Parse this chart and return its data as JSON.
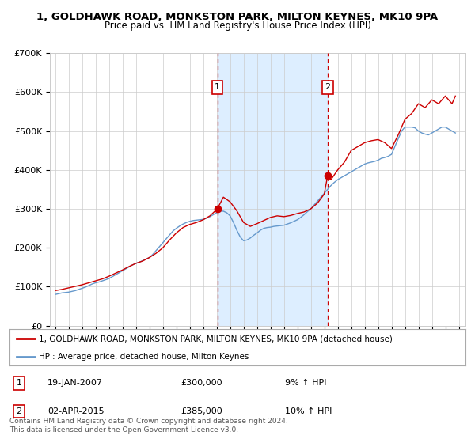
{
  "title": "1, GOLDHAWK ROAD, MONKSTON PARK, MILTON KEYNES, MK10 9PA",
  "subtitle": "Price paid vs. HM Land Registry's House Price Index (HPI)",
  "background_color": "#ffffff",
  "plot_bg_color": "#ffffff",
  "grid_color": "#cccccc",
  "legend_label_red": "1, GOLDHAWK ROAD, MONKSTON PARK, MILTON KEYNES, MK10 9PA (detached house)",
  "legend_label_blue": "HPI: Average price, detached house, Milton Keynes",
  "annotation1_label": "1",
  "annotation1_date": "19-JAN-2007",
  "annotation1_price": "£300,000",
  "annotation1_hpi": "9% ↑ HPI",
  "annotation2_label": "2",
  "annotation2_date": "02-APR-2015",
  "annotation2_price": "£385,000",
  "annotation2_hpi": "10% ↑ HPI",
  "footer": "Contains HM Land Registry data © Crown copyright and database right 2024.\nThis data is licensed under the Open Government Licence v3.0.",
  "ylim": [
    0,
    700000
  ],
  "yticks": [
    0,
    100000,
    200000,
    300000,
    400000,
    500000,
    600000,
    700000
  ],
  "ytick_labels": [
    "£0",
    "£100K",
    "£200K",
    "£300K",
    "£400K",
    "£500K",
    "£600K",
    "£700K"
  ],
  "xlim_start": 1994.6,
  "xlim_end": 2025.5,
  "xticks": [
    1995,
    1996,
    1997,
    1998,
    1999,
    2000,
    2001,
    2002,
    2003,
    2004,
    2005,
    2006,
    2007,
    2008,
    2009,
    2010,
    2011,
    2012,
    2013,
    2014,
    2015,
    2016,
    2017,
    2018,
    2019,
    2020,
    2021,
    2022,
    2023,
    2024,
    2025
  ],
  "marker1_x": 2007.05,
  "marker1_y": 300000,
  "marker2_x": 2015.25,
  "marker2_y": 385000,
  "vline1_x": 2007.05,
  "vline2_x": 2015.25,
  "shade_start": 2007.05,
  "shade_end": 2015.25,
  "red_line_color": "#cc0000",
  "blue_line_color": "#6699cc",
  "shade_color": "#ddeeff",
  "vline_color": "#cc0000",
  "hpi_x": [
    1995.0,
    1995.25,
    1995.5,
    1995.75,
    1996.0,
    1996.25,
    1996.5,
    1996.75,
    1997.0,
    1997.25,
    1997.5,
    1997.75,
    1998.0,
    1998.25,
    1998.5,
    1998.75,
    1999.0,
    1999.25,
    1999.5,
    1999.75,
    2000.0,
    2000.25,
    2000.5,
    2000.75,
    2001.0,
    2001.25,
    2001.5,
    2001.75,
    2002.0,
    2002.25,
    2002.5,
    2002.75,
    2003.0,
    2003.25,
    2003.5,
    2003.75,
    2004.0,
    2004.25,
    2004.5,
    2004.75,
    2005.0,
    2005.25,
    2005.5,
    2005.75,
    2006.0,
    2006.25,
    2006.5,
    2006.75,
    2007.0,
    2007.25,
    2007.5,
    2007.75,
    2008.0,
    2008.25,
    2008.5,
    2008.75,
    2009.0,
    2009.25,
    2009.5,
    2009.75,
    2010.0,
    2010.25,
    2010.5,
    2010.75,
    2011.0,
    2011.25,
    2011.5,
    2011.75,
    2012.0,
    2012.25,
    2012.5,
    2012.75,
    2013.0,
    2013.25,
    2013.5,
    2013.75,
    2014.0,
    2014.25,
    2014.5,
    2014.75,
    2015.0,
    2015.25,
    2015.5,
    2015.75,
    2016.0,
    2016.25,
    2016.5,
    2016.75,
    2017.0,
    2017.25,
    2017.5,
    2017.75,
    2018.0,
    2018.25,
    2018.5,
    2018.75,
    2019.0,
    2019.25,
    2019.5,
    2019.75,
    2020.0,
    2020.25,
    2020.5,
    2020.75,
    2021.0,
    2021.25,
    2021.5,
    2021.75,
    2022.0,
    2022.25,
    2022.5,
    2022.75,
    2023.0,
    2023.25,
    2023.5,
    2023.75,
    2024.0,
    2024.25,
    2024.5,
    2024.75
  ],
  "hpi_y": [
    80000,
    82000,
    84000,
    85000,
    86000,
    88000,
    90000,
    93000,
    96000,
    99000,
    103000,
    107000,
    110000,
    112000,
    115000,
    118000,
    121000,
    126000,
    131000,
    136000,
    141000,
    146000,
    151000,
    156000,
    160000,
    163000,
    167000,
    171000,
    175000,
    183000,
    193000,
    203000,
    213000,
    223000,
    233000,
    243000,
    250000,
    256000,
    261000,
    265000,
    268000,
    270000,
    271000,
    272000,
    273000,
    276000,
    280000,
    285000,
    290000,
    294000,
    294000,
    290000,
    282000,
    265000,
    245000,
    228000,
    218000,
    220000,
    225000,
    232000,
    238000,
    245000,
    250000,
    252000,
    253000,
    255000,
    256000,
    257000,
    258000,
    261000,
    264000,
    268000,
    272000,
    278000,
    285000,
    293000,
    300000,
    310000,
    320000,
    330000,
    340000,
    350000,
    360000,
    368000,
    375000,
    380000,
    385000,
    390000,
    395000,
    400000,
    405000,
    410000,
    415000,
    418000,
    420000,
    422000,
    425000,
    430000,
    432000,
    435000,
    440000,
    460000,
    480000,
    500000,
    510000,
    510000,
    510000,
    508000,
    500000,
    495000,
    492000,
    490000,
    495000,
    500000,
    505000,
    510000,
    510000,
    505000,
    500000,
    495000
  ],
  "red_x": [
    1995.0,
    1995.5,
    1996.0,
    1996.5,
    1997.0,
    1997.5,
    1998.0,
    1998.5,
    1999.0,
    1999.5,
    2000.0,
    2000.5,
    2001.0,
    2001.5,
    2002.0,
    2002.5,
    2003.0,
    2003.5,
    2004.0,
    2004.5,
    2005.0,
    2005.5,
    2006.0,
    2006.5,
    2007.05,
    2007.5,
    2008.0,
    2008.5,
    2009.0,
    2009.5,
    2010.0,
    2010.5,
    2011.0,
    2011.5,
    2012.0,
    2012.5,
    2013.0,
    2013.5,
    2014.0,
    2014.5,
    2015.0,
    2015.25,
    2015.5,
    2016.0,
    2016.5,
    2017.0,
    2017.5,
    2018.0,
    2018.5,
    2019.0,
    2019.5,
    2020.0,
    2020.5,
    2021.0,
    2021.5,
    2022.0,
    2022.5,
    2023.0,
    2023.5,
    2024.0,
    2024.5,
    2024.75
  ],
  "red_y": [
    90000,
    93000,
    97000,
    101000,
    105000,
    110000,
    115000,
    120000,
    127000,
    135000,
    143000,
    152000,
    160000,
    166000,
    175000,
    186000,
    200000,
    220000,
    238000,
    252000,
    260000,
    265000,
    272000,
    282000,
    300000,
    330000,
    318000,
    295000,
    265000,
    255000,
    262000,
    270000,
    278000,
    282000,
    280000,
    283000,
    288000,
    292000,
    300000,
    315000,
    338000,
    385000,
    375000,
    400000,
    420000,
    450000,
    460000,
    470000,
    475000,
    478000,
    470000,
    455000,
    490000,
    530000,
    545000,
    570000,
    560000,
    580000,
    570000,
    590000,
    570000,
    590000
  ]
}
